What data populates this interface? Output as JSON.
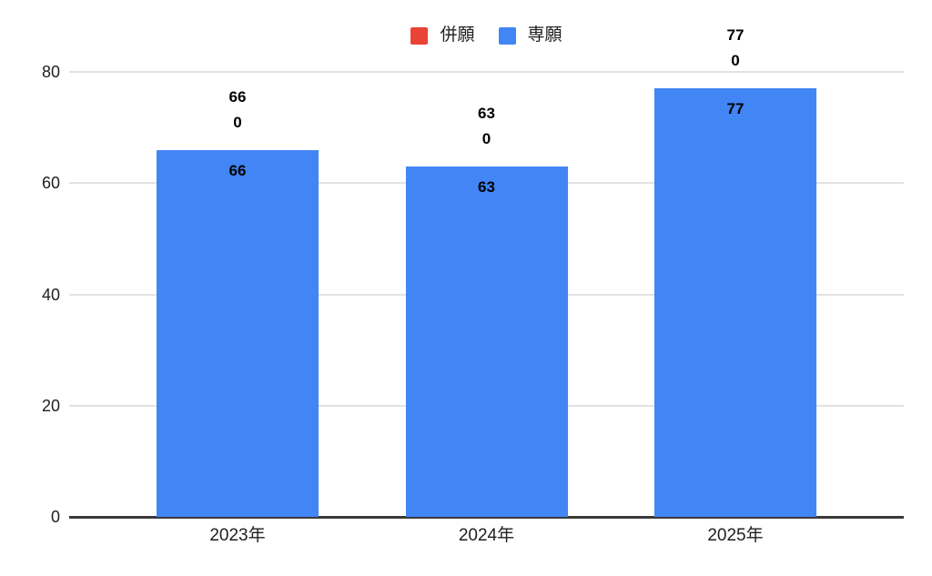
{
  "chart_data": {
    "type": "bar",
    "title": "",
    "categories": [
      "2023年",
      "2024年",
      "2025年"
    ],
    "series": [
      {
        "name": "併願",
        "color": "#EA4335",
        "values": [
          0,
          0,
          0
        ]
      },
      {
        "name": "専願",
        "color": "#4285F4",
        "values": [
          66,
          63,
          77
        ]
      }
    ],
    "ylim": [
      0,
      80
    ],
    "yticks": [
      0,
      20,
      40,
      60,
      80
    ],
    "grid": true,
    "legend_position": "top-center",
    "data_labels": {
      "above_bars_per_category": [
        [
          "66",
          "0"
        ],
        [
          "63",
          "0"
        ],
        [
          "77",
          "0"
        ]
      ],
      "inside_bars": [
        "66",
        "63",
        "77"
      ]
    }
  },
  "colors": {
    "background": "#ffffff",
    "gridline": "#e2e2e2",
    "axis_baseline": "#3a3a3a",
    "tick_text": "#1f1f1f",
    "data_label_text": "#000000"
  }
}
